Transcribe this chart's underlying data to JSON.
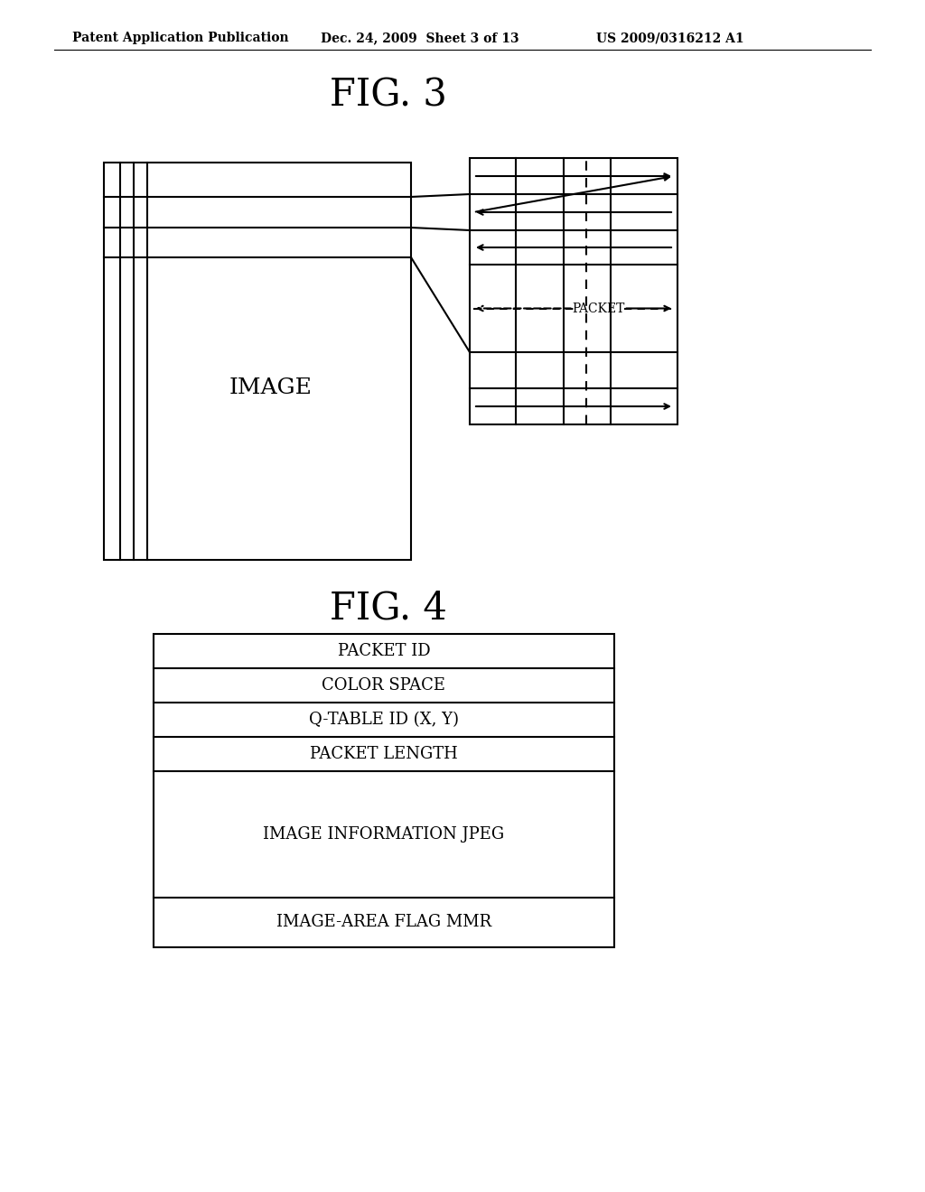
{
  "header_left": "Patent Application Publication",
  "header_mid": "Dec. 24, 2009  Sheet 3 of 13",
  "header_right": "US 2009/0316212 A1",
  "fig3_title": "FIG. 3",
  "fig4_title": "FIG. 4",
  "image_label": "IMAGE",
  "packet_label": "PACKET",
  "fig4_rows": [
    "PACKET ID",
    "COLOR SPACE",
    "Q-TABLE ID (X, Y)",
    "PACKET LENGTH",
    "IMAGE INFORMATION JPEG",
    "IMAGE-AREA FLAG MMR"
  ],
  "fig4_row_heights": [
    38,
    38,
    38,
    38,
    140,
    55
  ],
  "background": "#ffffff",
  "line_color": "#000000"
}
